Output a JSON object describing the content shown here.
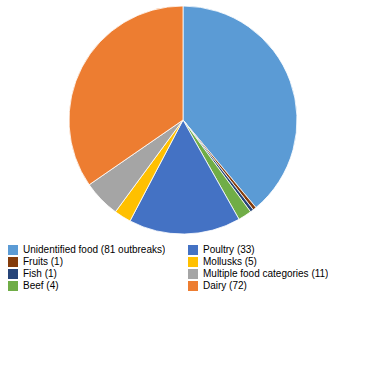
{
  "chart_data": {
    "type": "pie",
    "categories": [
      "Unidentified food (81 outbreaks)",
      "Fruits (1)",
      "Fish (1)",
      "Beef (4)",
      "Poultry (33)",
      "Mollusks (5)",
      "Multiple food categories (11)",
      "Dairy (72)"
    ],
    "values": [
      81,
      1,
      1,
      4,
      33,
      5,
      11,
      72
    ],
    "colors": [
      "#5B9BD5",
      "#843C0C",
      "#264478",
      "#70AD47",
      "#4472C4",
      "#FFC000",
      "#A5A5A5",
      "#ED7D31"
    ],
    "legend": "bottom"
  }
}
